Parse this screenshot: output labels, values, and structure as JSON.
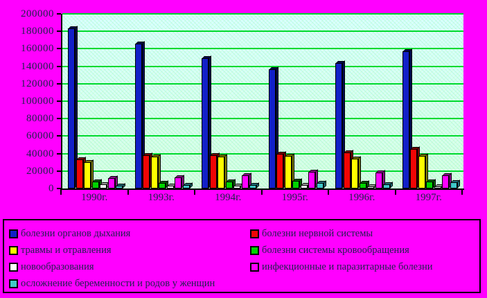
{
  "page": {
    "background_color": "#ff00ff",
    "plot_background": "#d8fff4",
    "gridline_color": "#00da2e",
    "text_color": "#20204e"
  },
  "chart_data": {
    "type": "bar",
    "style": "3d-clustered-columns",
    "title": "",
    "xlabel": "",
    "ylabel": "",
    "ylim": [
      0,
      200000
    ],
    "ytick_step": 20000,
    "yticks": [
      "200000",
      "180000",
      "160000",
      "140000",
      "120000",
      "100000",
      "80000",
      "60000",
      "40000",
      "20000",
      "0"
    ],
    "grid": true,
    "legend_position": "bottom",
    "categories": [
      "1990г.",
      "1993г.",
      "1994г.",
      "1995г.",
      "1996г.",
      "1997г."
    ],
    "series": [
      {
        "name": "болезни органов дыхания",
        "color": "#1220c8",
        "side": "#000a52",
        "values": [
          183000,
          166000,
          149000,
          136500,
          144000,
          157000
        ]
      },
      {
        "name": "болезни нервной системы",
        "color": "#f00505",
        "side": "#7a0000",
        "values": [
          33000,
          38000,
          38000,
          40000,
          41500,
          45000
        ]
      },
      {
        "name": "травмы и отравления",
        "color": "#ffff00",
        "side": "#7f7f00",
        "values": [
          30000,
          36500,
          36500,
          37500,
          34000,
          37000
        ]
      },
      {
        "name": "болезни системы кровообращения",
        "color": "#00d400",
        "side": "#006600",
        "values": [
          8000,
          6500,
          8000,
          9000,
          6500,
          8000
        ]
      },
      {
        "name": "новообразования",
        "color": "#ffffff",
        "side": "#999999",
        "values": [
          4500,
          3000,
          3000,
          4000,
          2500,
          2000
        ]
      },
      {
        "name": "инфекционные и паразитарные болезни",
        "color": "#ff00ff",
        "side": "#8b108b",
        "values": [
          12000,
          13000,
          15000,
          19000,
          18500,
          15000
        ]
      },
      {
        "name": "осложнение беременности и родов у женщин",
        "color": "#40c8c8",
        "side": "#1e6e78",
        "values": [
          3500,
          4000,
          4000,
          6500,
          5000,
          7500
        ]
      }
    ]
  }
}
